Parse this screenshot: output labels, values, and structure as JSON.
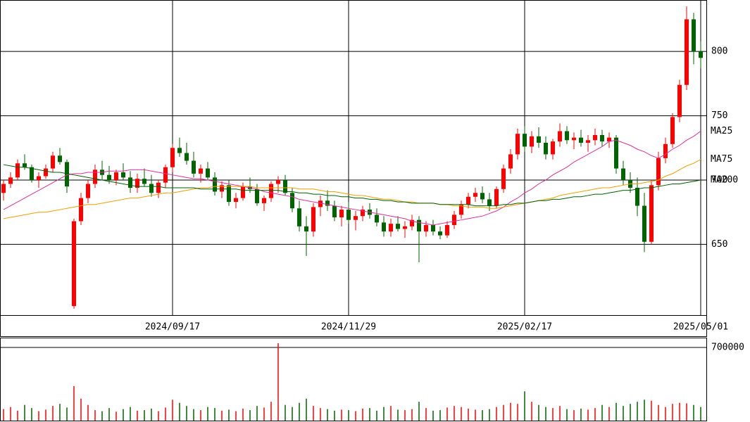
{
  "chart_data": {
    "type": "candlestick",
    "categories": [
      null,
      null,
      null,
      null,
      null,
      null,
      null,
      null,
      null,
      null,
      null,
      null,
      null,
      null,
      null,
      null,
      null,
      null,
      null,
      null,
      null,
      null,
      null,
      null,
      "2024/09/17",
      null,
      null,
      null,
      null,
      null,
      null,
      null,
      null,
      null,
      null,
      null,
      null,
      null,
      null,
      null,
      null,
      null,
      null,
      null,
      null,
      null,
      null,
      null,
      null,
      "2024/11/29",
      null,
      null,
      null,
      null,
      null,
      null,
      null,
      null,
      null,
      null,
      null,
      null,
      null,
      null,
      null,
      null,
      null,
      null,
      null,
      null,
      null,
      null,
      null,
      null,
      "2025/02/17",
      null,
      null,
      null,
      null,
      null,
      null,
      null,
      null,
      null,
      null,
      null,
      null,
      null,
      null,
      null,
      null,
      null,
      null,
      null,
      null,
      null,
      null,
      null,
      null,
      "2025/05/01"
    ],
    "open": [
      690,
      697,
      702,
      713,
      710,
      700,
      703,
      709,
      719,
      714,
      602,
      668,
      686,
      697,
      708,
      704,
      700,
      706,
      702,
      694,
      701,
      697,
      690,
      698,
      710,
      725,
      721,
      715,
      705,
      709,
      702,
      691,
      696,
      683,
      686,
      695,
      693,
      682,
      686,
      697,
      700,
      690,
      678,
      664,
      660,
      679,
      684,
      680,
      671,
      677,
      669,
      672,
      677,
      673,
      667,
      660,
      666,
      662,
      664,
      669,
      660,
      665,
      660,
      657,
      665,
      673,
      681,
      687,
      690,
      685,
      680,
      693,
      709,
      720,
      736,
      726,
      734,
      729,
      720,
      730,
      738,
      731,
      733,
      729,
      731,
      735,
      730,
      733,
      709,
      700,
      694,
      680,
      652,
      696,
      717,
      728,
      749,
      774,
      825,
      800
    ],
    "high": [
      700,
      706,
      716,
      720,
      712,
      706,
      712,
      722,
      725,
      716,
      670,
      690,
      700,
      712,
      715,
      711,
      708,
      713,
      707,
      705,
      709,
      704,
      700,
      712,
      728,
      733,
      729,
      722,
      712,
      714,
      706,
      699,
      700,
      690,
      698,
      702,
      697,
      688,
      699,
      703,
      704,
      694,
      684,
      672,
      682,
      688,
      692,
      684,
      680,
      683,
      676,
      680,
      682,
      678,
      672,
      670,
      672,
      668,
      673,
      672,
      668,
      669,
      664,
      668,
      676,
      684,
      690,
      694,
      695,
      690,
      695,
      712,
      724,
      740,
      742,
      738,
      741,
      734,
      732,
      744,
      742,
      737,
      739,
      735,
      740,
      739,
      737,
      735,
      715,
      706,
      702,
      690,
      700,
      722,
      733,
      752,
      778,
      835,
      830,
      808
    ],
    "low": [
      684,
      694,
      700,
      708,
      698,
      694,
      701,
      706,
      712,
      690,
      600,
      665,
      682,
      694,
      700,
      697,
      696,
      700,
      690,
      690,
      695,
      687,
      686,
      694,
      706,
      718,
      712,
      702,
      698,
      700,
      688,
      686,
      680,
      678,
      684,
      690,
      680,
      676,
      683,
      690,
      688,
      675,
      660,
      641,
      656,
      672,
      676,
      668,
      664,
      666,
      661,
      668,
      670,
      664,
      656,
      656,
      660,
      655,
      661,
      636,
      656,
      657,
      654,
      655,
      662,
      670,
      678,
      683,
      682,
      676,
      678,
      690,
      705,
      716,
      722,
      721,
      725,
      716,
      716,
      726,
      728,
      724,
      726,
      722,
      727,
      726,
      725,
      705,
      696,
      690,
      672,
      644,
      650,
      692,
      713,
      725,
      745,
      770,
      790,
      787
    ],
    "close": [
      697,
      702,
      713,
      710,
      700,
      703,
      709,
      719,
      714,
      695,
      668,
      686,
      697,
      708,
      704,
      700,
      706,
      702,
      694,
      701,
      697,
      690,
      698,
      710,
      725,
      721,
      715,
      705,
      709,
      702,
      691,
      696,
      683,
      686,
      695,
      693,
      682,
      686,
      697,
      700,
      690,
      678,
      664,
      660,
      679,
      684,
      680,
      671,
      677,
      669,
      672,
      677,
      673,
      667,
      660,
      666,
      662,
      664,
      669,
      660,
      665,
      660,
      657,
      665,
      673,
      681,
      687,
      690,
      685,
      680,
      693,
      709,
      720,
      736,
      726,
      734,
      729,
      720,
      730,
      738,
      731,
      733,
      729,
      731,
      735,
      730,
      733,
      709,
      700,
      694,
      680,
      652,
      696,
      717,
      728,
      749,
      774,
      825,
      800,
      795
    ],
    "up_color": "#ff0000",
    "down_color": "#006400",
    "ylim": [
      595,
      840
    ],
    "yticks": [
      650,
      700,
      750,
      800
    ],
    "grid": true,
    "series": [
      {
        "name": "MA25",
        "color": "#e0309c",
        "values": [
          677,
          680,
          683,
          686,
          689,
          692,
          695,
          698,
          701,
          704,
          705,
          705,
          706,
          706,
          706,
          707,
          707,
          707,
          708,
          708,
          708,
          707,
          706,
          705,
          704,
          703,
          702,
          701,
          701,
          700,
          699,
          698,
          697,
          696,
          695,
          694,
          693,
          691,
          690,
          689,
          688,
          687,
          685,
          684,
          683,
          682,
          681,
          680,
          679,
          678,
          677,
          676,
          675,
          674,
          673,
          672,
          671,
          670,
          668,
          667,
          666,
          665,
          666,
          667,
          668,
          669,
          670,
          671,
          672,
          674,
          676,
          679,
          683,
          686,
          690,
          693,
          697,
          700,
          704,
          707,
          710,
          714,
          717,
          720,
          723,
          726,
          730,
          731,
          729,
          727,
          724,
          722,
          719,
          717,
          720,
          724,
          727,
          731,
          734,
          738
        ]
      },
      {
        "name": "MA75",
        "color": "#f0a000",
        "values": [
          670,
          671,
          672,
          673,
          674,
          675,
          675,
          676,
          677,
          678,
          679,
          680,
          681,
          681,
          682,
          683,
          684,
          685,
          686,
          686,
          687,
          688,
          689,
          690,
          690,
          691,
          692,
          693,
          694,
          694,
          695,
          695,
          695,
          695,
          695,
          695,
          694,
          694,
          694,
          694,
          694,
          694,
          693,
          693,
          693,
          692,
          691,
          691,
          690,
          689,
          688,
          688,
          687,
          686,
          685,
          685,
          684,
          683,
          683,
          682,
          682,
          682,
          681,
          681,
          680,
          680,
          679,
          679,
          679,
          678,
          678,
          679,
          680,
          681,
          682,
          683,
          684,
          685,
          686,
          688,
          689,
          690,
          691,
          692,
          693,
          694,
          694,
          695,
          696,
          697,
          697,
          698,
          699,
          700,
          703,
          705,
          708,
          711,
          713,
          716
        ]
      },
      {
        "name": "MA200",
        "color": "#006000",
        "values": [
          712,
          711,
          710,
          710,
          709,
          708,
          707,
          706,
          706,
          705,
          704,
          703,
          702,
          701,
          700,
          699,
          698,
          697,
          696,
          695,
          695,
          695,
          695,
          694,
          694,
          694,
          694,
          694,
          693,
          693,
          693,
          693,
          693,
          693,
          692,
          692,
          692,
          692,
          692,
          692,
          691,
          691,
          690,
          690,
          689,
          689,
          688,
          688,
          687,
          687,
          686,
          686,
          685,
          685,
          684,
          684,
          683,
          683,
          682,
          682,
          682,
          682,
          681,
          681,
          681,
          681,
          681,
          680,
          680,
          680,
          680,
          681,
          681,
          682,
          682,
          683,
          684,
          684,
          685,
          685,
          686,
          687,
          687,
          688,
          689,
          689,
          690,
          691,
          692,
          692,
          693,
          694,
          694,
          695,
          696,
          697,
          697,
          698,
          699,
          700
        ]
      }
    ],
    "volume": {
      "values": [
        110000,
        130000,
        95000,
        150000,
        120000,
        90000,
        105000,
        140000,
        160000,
        125000,
        330000,
        210000,
        150000,
        100000,
        90000,
        120000,
        85000,
        110000,
        130000,
        95000,
        100000,
        115000,
        90000,
        125000,
        200000,
        170000,
        140000,
        110000,
        100000,
        130000,
        120000,
        95000,
        105000,
        90000,
        115000,
        100000,
        140000,
        125000,
        180000,
        740000,
        150000,
        130000,
        170000,
        210000,
        140000,
        120000,
        110000,
        95000,
        105000,
        100000,
        90000,
        115000,
        120000,
        95000,
        130000,
        140000,
        105000,
        100000,
        110000,
        180000,
        120000,
        95000,
        100000,
        125000,
        140000,
        130000,
        115000,
        105000,
        100000,
        110000,
        130000,
        150000,
        170000,
        160000,
        280000,
        180000,
        150000,
        130000,
        120000,
        140000,
        110000,
        100000,
        115000,
        105000,
        120000,
        150000,
        130000,
        170000,
        140000,
        160000,
        180000,
        200000,
        190000,
        150000,
        130000,
        160000,
        170000,
        165000,
        150000,
        130000
      ],
      "ylim": [
        0,
        794000
      ],
      "yticks": [
        700000
      ]
    }
  }
}
